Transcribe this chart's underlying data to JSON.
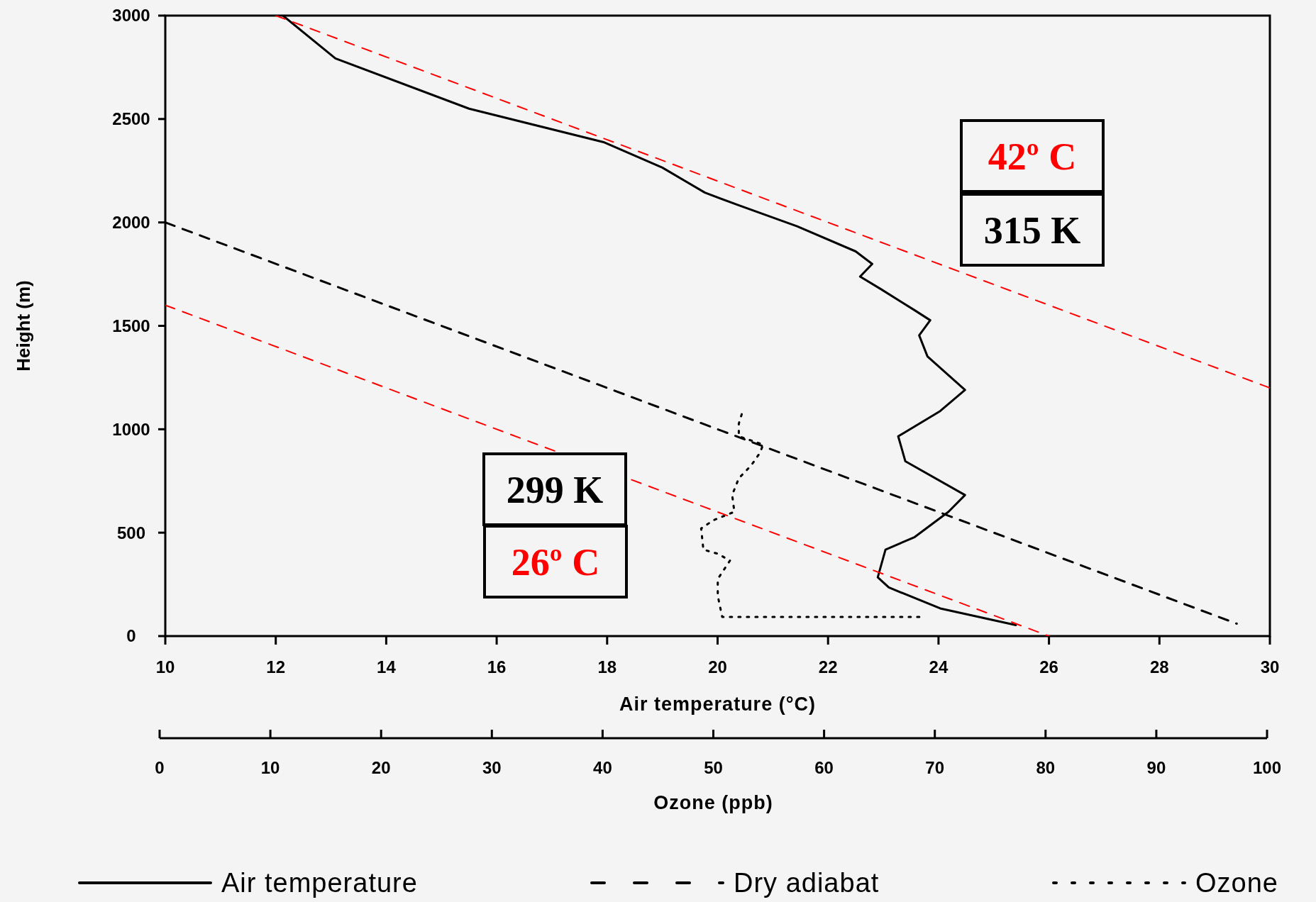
{
  "chart_data": {
    "type": "line",
    "xlabel": "Air temperature (°C)",
    "ylabel": "Height (m)",
    "x2label": "Ozone (ppb)",
    "xlim": [
      10,
      30
    ],
    "xticks": [
      10,
      12,
      14,
      16,
      18,
      20,
      22,
      24,
      26,
      28,
      30
    ],
    "x2lim": [
      0,
      100
    ],
    "x2ticks": [
      0,
      10,
      20,
      30,
      40,
      50,
      60,
      70,
      80,
      90,
      100
    ],
    "ylim": [
      0,
      3000
    ],
    "yticks": [
      0,
      500,
      1000,
      1500,
      2000,
      2500,
      3000
    ],
    "grid": false,
    "legend": "bottom",
    "marker": "none",
    "series": [
      {
        "name": "Air temperature",
        "color": "#000000",
        "line_style": "solid",
        "x": [
          12.13,
          13.08,
          15.5,
          17.95,
          19.0,
          19.77,
          20.38,
          21.44,
          22.5,
          22.8,
          22.58,
          22.96,
          23.57,
          23.85,
          23.65,
          23.8,
          24.48,
          24.03,
          23.27,
          23.4,
          24.48,
          24.18,
          23.57,
          23.04,
          22.9,
          23.1,
          24.03,
          25.4
        ],
        "values": [
          3000,
          2793,
          2550,
          2387,
          2265,
          2144,
          2083,
          1981,
          1860,
          1799,
          1738,
          1677,
          1575,
          1527,
          1454,
          1352,
          1190,
          1088,
          966,
          845,
          682,
          601,
          479,
          418,
          284,
          235,
          134,
          53
        ]
      },
      {
        "name": "Dry adiabat",
        "color": "#000000",
        "line_style": "dashed",
        "x": [
          10,
          29.4
        ],
        "values": [
          2000,
          60
        ]
      },
      {
        "name": "Ozone",
        "color": "#000000",
        "line_style": "dotted",
        "axis": "x2",
        "x": [
          68.6,
          50.8,
          50.4,
          50.4,
          51.5,
          50.4,
          49.1,
          48.9,
          50.0,
          51.9,
          51.7,
          52.3,
          53.4,
          54.2,
          54.5,
          53.4,
          52.3,
          52.3,
          52.7
        ],
        "values": [
          93,
          93,
          195,
          276,
          365,
          398,
          418,
          520,
          560,
          601,
          682,
          763,
          824,
          885,
          926,
          946,
          966,
          1027,
          1096
        ]
      },
      {
        "color": "#ff0000",
        "line_style": "dashed",
        "x": [
          12,
          30
        ],
        "values": [
          3000,
          1200
        ]
      },
      {
        "color": "#ff0000",
        "line_style": "dashed",
        "x": [
          10,
          26
        ],
        "values": [
          1600,
          0
        ]
      }
    ],
    "annotations": [
      "42º C",
      "315 K",
      "299 K",
      "26º C"
    ]
  }
}
